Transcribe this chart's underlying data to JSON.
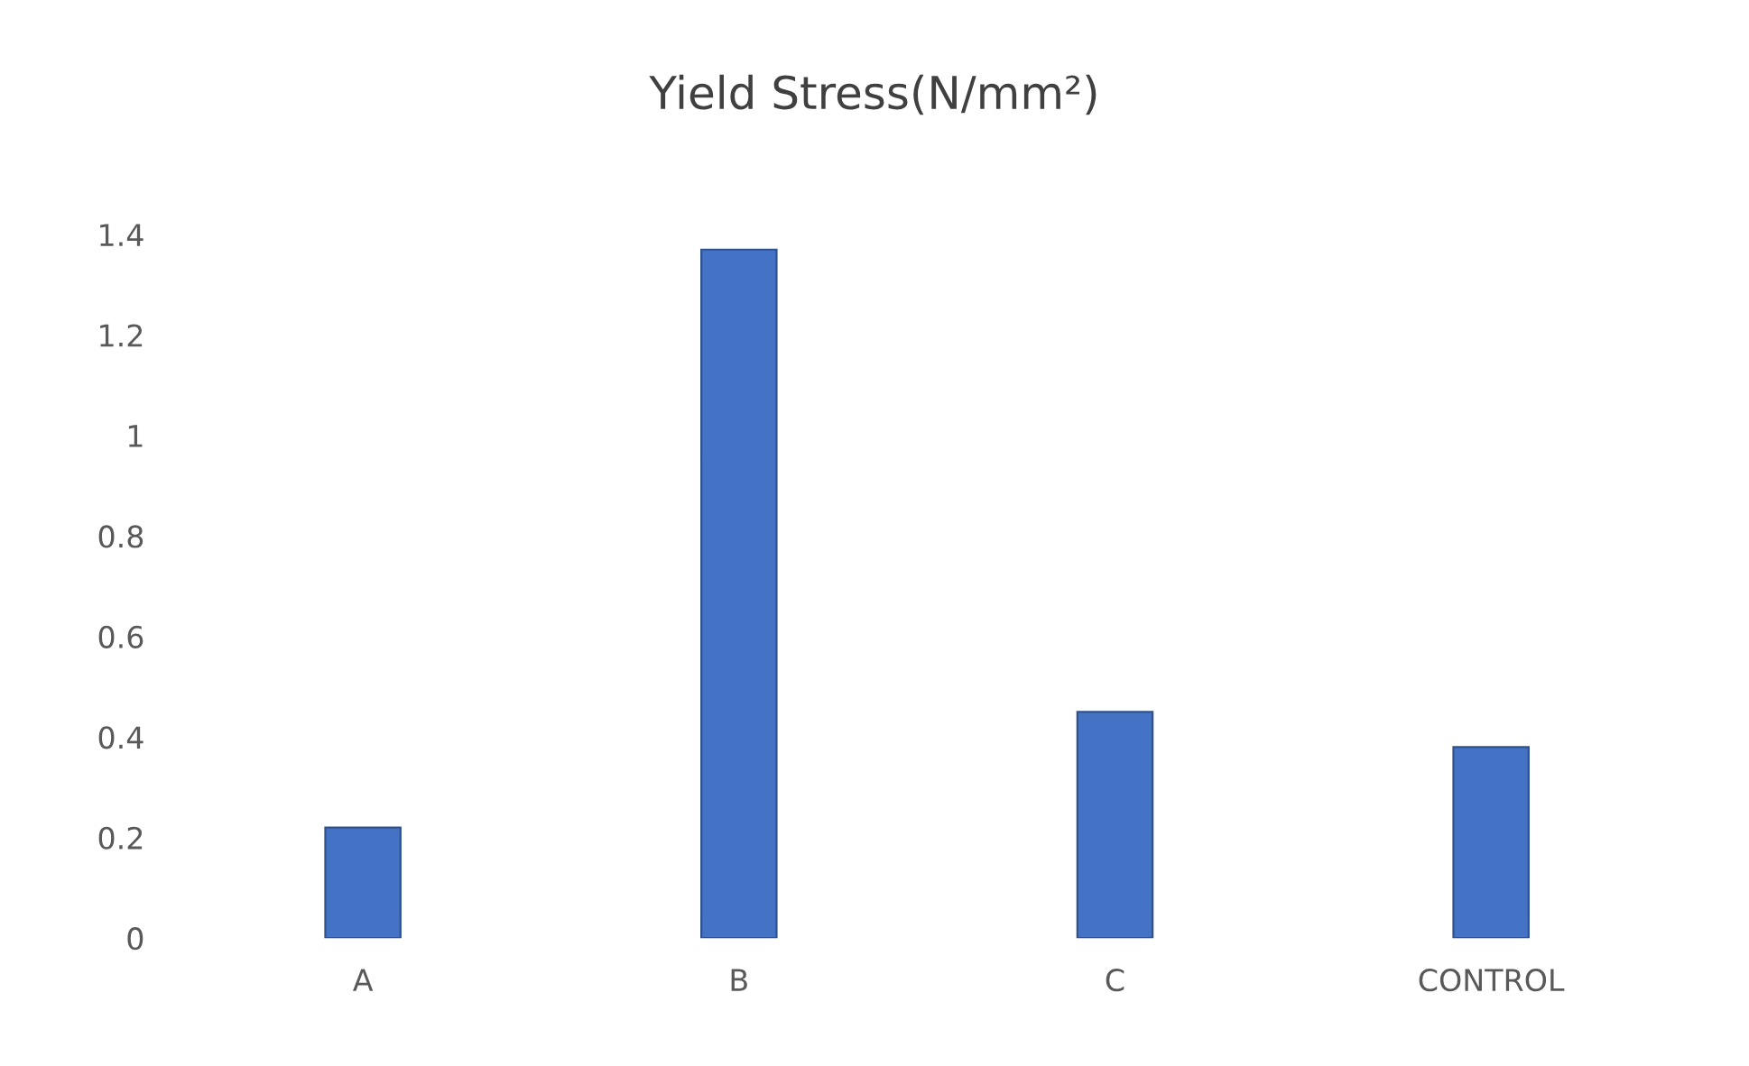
{
  "chart_data": {
    "type": "bar",
    "title": "Yield Stress(N/mm²)",
    "categories": [
      "A",
      "B",
      "C",
      "CONTROL"
    ],
    "values": [
      0.22,
      1.37,
      0.45,
      0.38
    ],
    "color": "#4472c4",
    "ylim": [
      0,
      1.4
    ],
    "yticks": [
      0,
      0.2,
      0.4,
      0.6,
      0.8,
      1,
      1.2,
      1.4
    ],
    "grid": false,
    "legend": false
  }
}
